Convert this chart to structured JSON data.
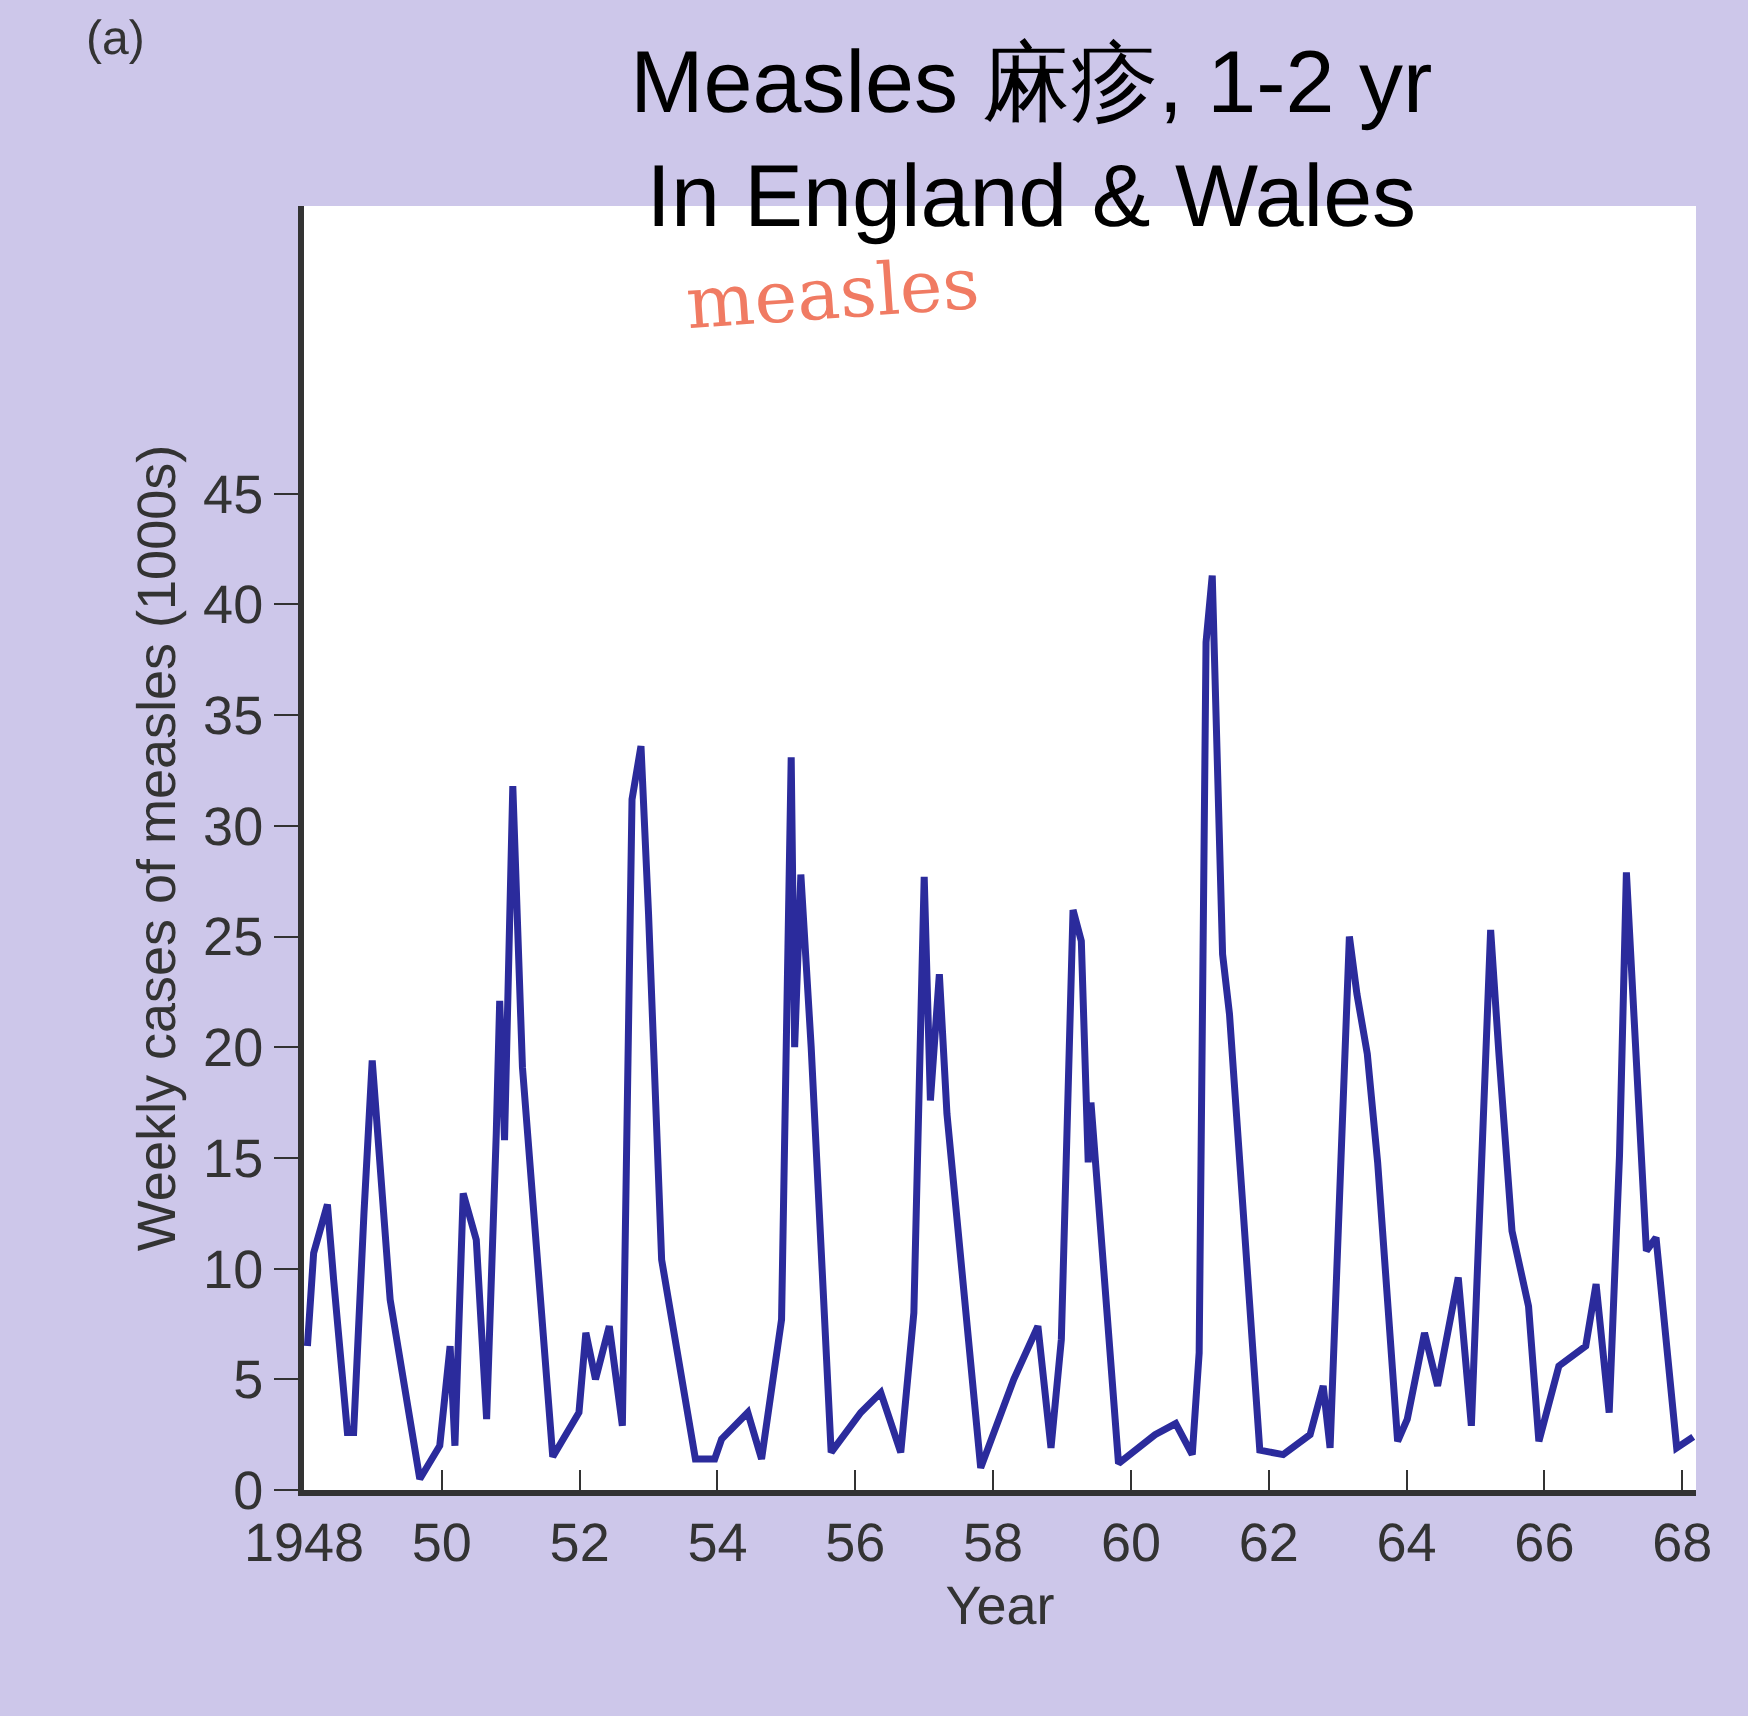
{
  "chart_data": {
    "type": "line",
    "title": "Measles 麻疹, 1-2 yr\nIn England & Wales",
    "xlabel": "Year",
    "ylabel": "Weekly cases of measles (1000s)",
    "annotations": [
      "(a)",
      "measles"
    ],
    "x": [
      1948.05,
      1948.14,
      1948.34,
      1948.43,
      1948.63,
      1948.72,
      1948.87,
      1948.99,
      1949.25,
      1949.68,
      1949.97,
      1950.12,
      1950.19,
      1950.31,
      1950.5,
      1950.65,
      1950.79,
      1950.84,
      1950.91,
      1951.03,
      1951.17,
      1951.61,
      1951.99,
      1952.09,
      1952.23,
      1952.43,
      1952.62,
      1952.76,
      1952.89,
      1953.0,
      1953.19,
      1953.68,
      1953.96,
      1954.06,
      1954.44,
      1954.64,
      1954.93,
      1955.07,
      1955.12,
      1955.21,
      1955.36,
      1955.65,
      1956.08,
      1956.37,
      1956.66,
      1956.85,
      1957.0,
      1957.09,
      1957.22,
      1957.33,
      1957.82,
      1958.3,
      1958.65,
      1958.84,
      1958.99,
      1959.16,
      1959.28,
      1959.38,
      1959.42,
      1959.82,
      1960.35,
      1960.65,
      1960.89,
      1960.99,
      1961.09,
      1961.18,
      1961.33,
      1961.43,
      1961.87,
      1962.21,
      1962.6,
      1962.79,
      1962.89,
      1963.17,
      1963.28,
      1963.43,
      1963.58,
      1963.87,
      1964.01,
      1964.26,
      1964.45,
      1964.75,
      1964.94,
      1965.22,
      1965.34,
      1965.53,
      1965.77,
      1965.92,
      1966.21,
      1966.6,
      1966.75,
      1966.94,
      1967.09,
      1967.19,
      1967.48,
      1967.62,
      1967.92,
      1968.16
    ],
    "series": [
      {
        "color": "#2b2b9c",
        "values": [
          6.5,
          10.7,
          12.9,
          9.5,
          2.6,
          2.6,
          12.5,
          19.4,
          8.6,
          0.5,
          2.0,
          6.5,
          2.0,
          13.4,
          11.3,
          3.2,
          16.1,
          22.1,
          15.8,
          31.8,
          19.1,
          1.5,
          3.5,
          7.1,
          5.0,
          7.4,
          2.9,
          31.2,
          33.6,
          26.0,
          10.4,
          1.4,
          1.4,
          2.3,
          3.5,
          1.4,
          7.7,
          33.1,
          20.0,
          27.8,
          20.0,
          1.7,
          3.5,
          4.4,
          1.7,
          8.0,
          27.7,
          17.6,
          23.3,
          17.0,
          1.0,
          5.0,
          7.4,
          1.9,
          6.8,
          26.2,
          24.8,
          14.8,
          17.5,
          1.2,
          2.5,
          3.0,
          1.6,
          6.2,
          38.3,
          41.3,
          24.2,
          21.5,
          1.8,
          1.6,
          2.5,
          4.7,
          1.9,
          25.0,
          22.4,
          19.7,
          14.8,
          2.2,
          3.2,
          7.1,
          4.7,
          9.6,
          2.9,
          25.3,
          19.7,
          11.7,
          8.3,
          2.2,
          5.6,
          6.5,
          9.3,
          3.5,
          15.1,
          27.9,
          10.8,
          11.4,
          1.9,
          2.4
        ]
      }
    ],
    "xlim": [
      1948,
      1968.2
    ],
    "xticks": [
      {
        "value": 1948,
        "label": "1948"
      },
      {
        "value": 1950,
        "label": "50"
      },
      {
        "value": 1952,
        "label": "52"
      },
      {
        "value": 1954,
        "label": "54"
      },
      {
        "value": 1956,
        "label": "56"
      },
      {
        "value": 1958,
        "label": "58"
      },
      {
        "value": 1960,
        "label": "60"
      },
      {
        "value": 1962,
        "label": "62"
      },
      {
        "value": 1964,
        "label": "64"
      },
      {
        "value": 1966,
        "label": "66"
      },
      {
        "value": 1968,
        "label": "68"
      }
    ],
    "ylim": [
      0,
      58
    ],
    "yticks": [
      0,
      5,
      10,
      15,
      20,
      25,
      30,
      35,
      40,
      45
    ],
    "marker": "none",
    "line_style": "solid"
  }
}
